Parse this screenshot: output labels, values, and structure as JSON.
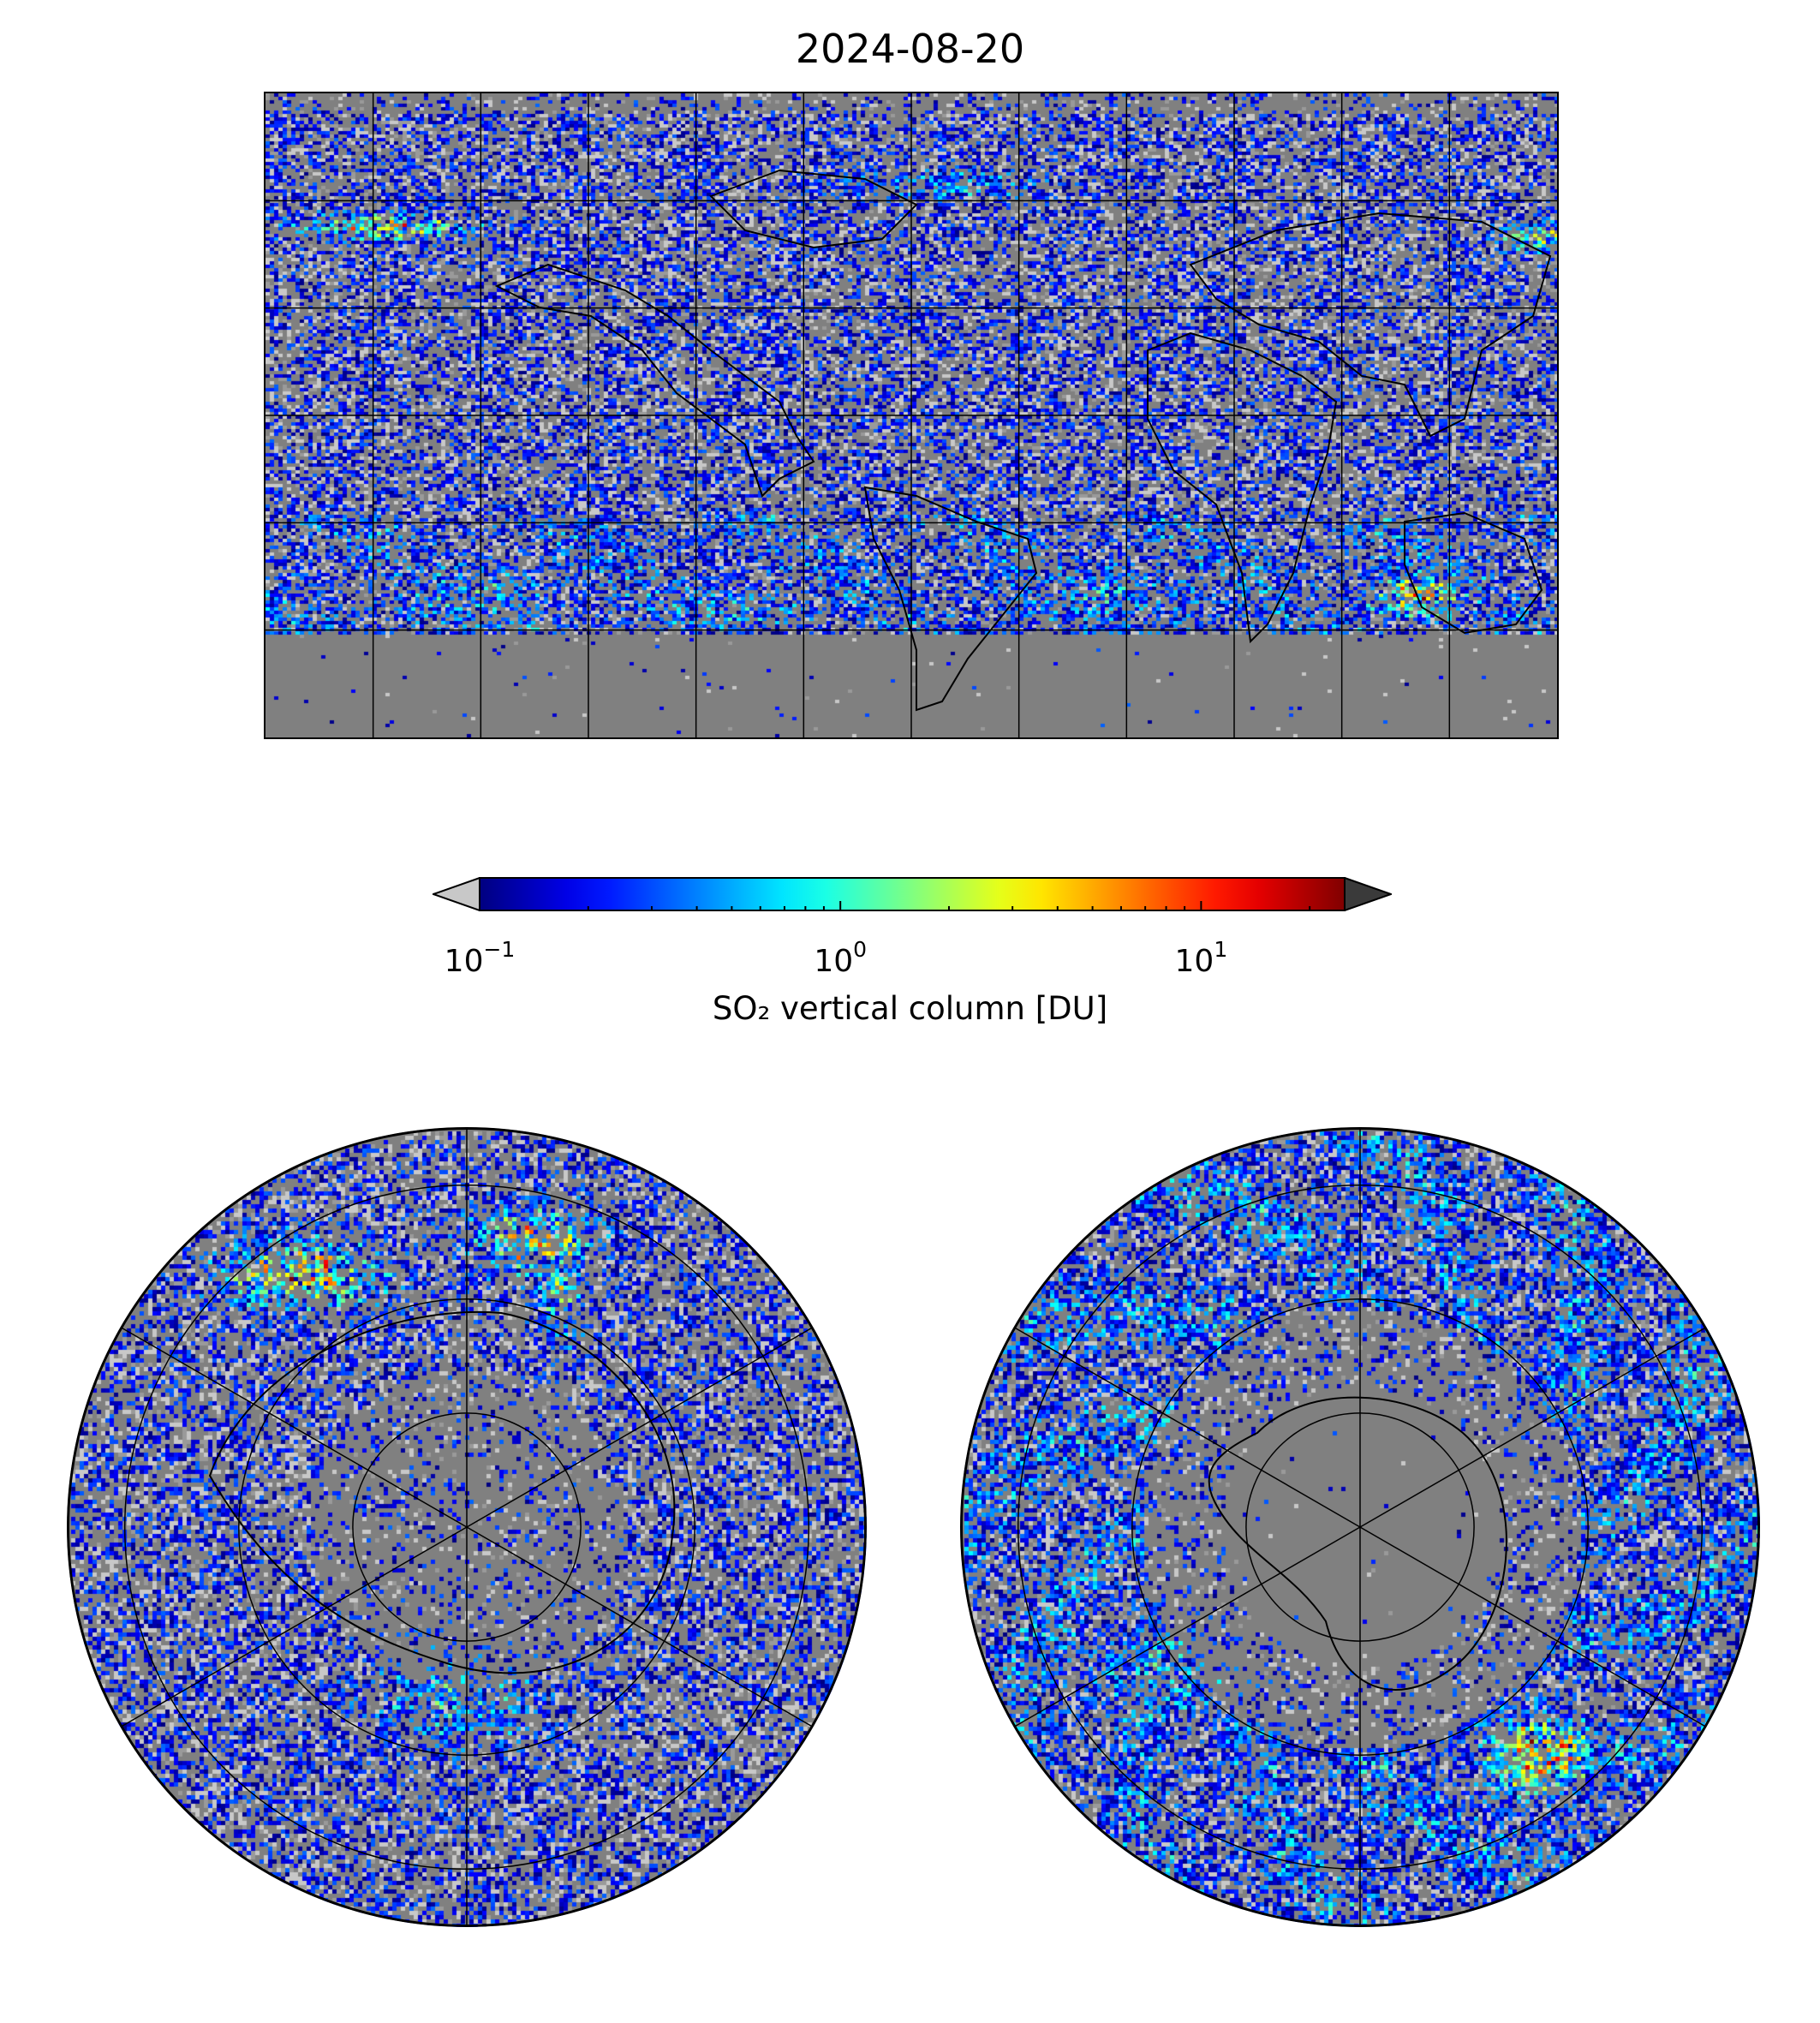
{
  "title": "2024-08-20",
  "colorbar": {
    "label": "SO₂ vertical column [DU]",
    "scale": "log",
    "range": [
      0.1,
      25
    ],
    "colormap": "jet",
    "extend": "both",
    "under_color": "#c8c8c8",
    "over_color": "#3a3a3a",
    "ticks": [
      {
        "value": 0.1,
        "base": "10",
        "exponent": "−1"
      },
      {
        "value": 1,
        "base": "10",
        "exponent": "0"
      },
      {
        "value": 10,
        "base": "10",
        "exponent": "1"
      }
    ]
  },
  "panels": [
    {
      "name": "global",
      "projection": "plate-carree",
      "gridlines_lon_step_deg": 30,
      "gridlines_lat_step_deg": 30
    },
    {
      "name": "north-polar",
      "projection": "north-polar-stereographic",
      "gridline_meridians_deg": 60
    },
    {
      "name": "south-polar",
      "projection": "south-polar-stereographic",
      "gridline_meridians_deg": 60
    }
  ],
  "colors": {
    "no_data": "#808080",
    "coastline": "#000000",
    "gridline": "#000000"
  }
}
